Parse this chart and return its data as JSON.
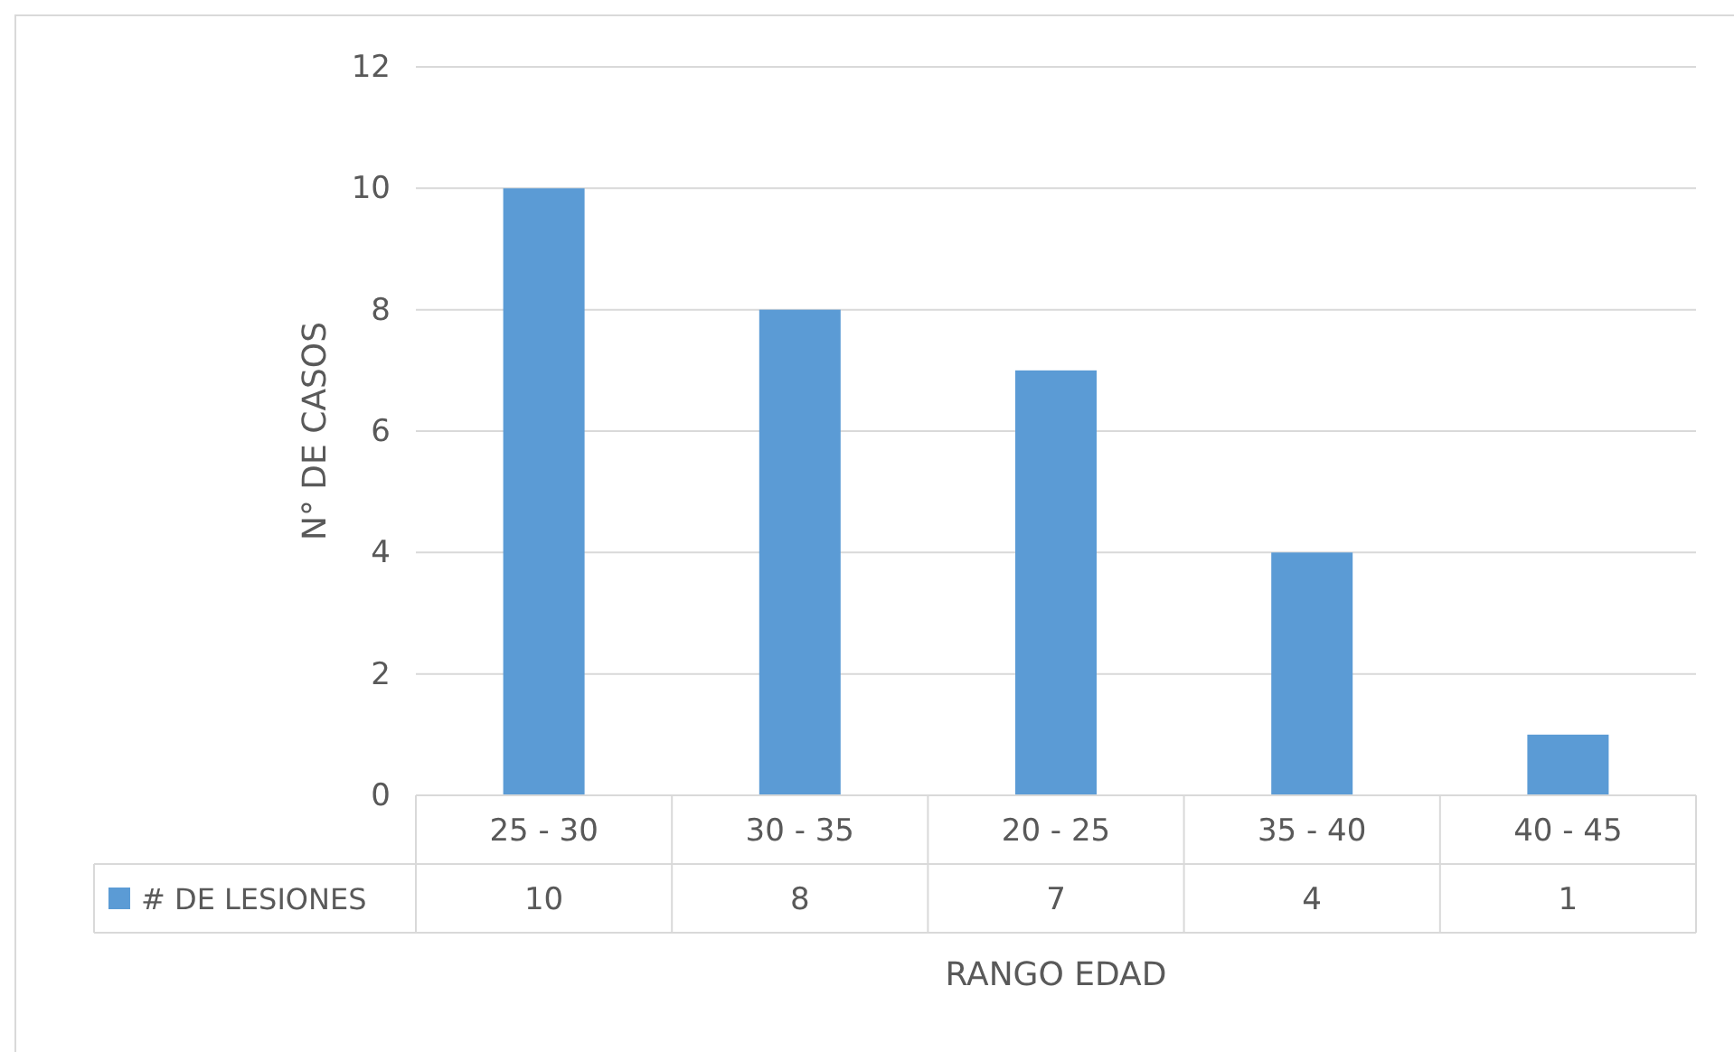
{
  "chart_data": {
    "type": "bar",
    "categories": [
      "25 - 30",
      "30 - 35",
      "20 - 25",
      "35 - 40",
      "40 - 45"
    ],
    "series": [
      {
        "name": "# DE LESIONES",
        "color": "#5b9bd5",
        "values": [
          10,
          8,
          7,
          4,
          1
        ]
      }
    ],
    "xlabel": "RANGO EDAD",
    "ylabel": "N° DE CASOS",
    "ylim": [
      0,
      12
    ],
    "yticks": [
      0,
      2,
      4,
      6,
      8,
      10,
      12
    ],
    "grid": "y",
    "data_labels": true,
    "legend": "bottom left"
  }
}
